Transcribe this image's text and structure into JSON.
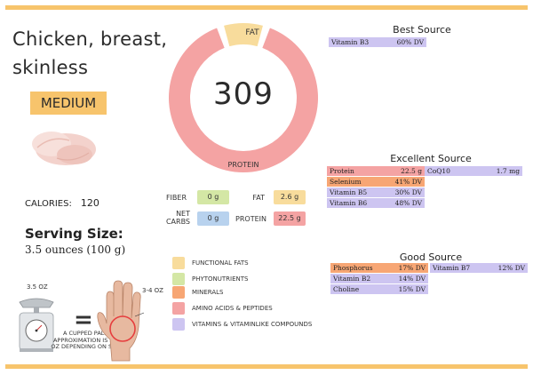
{
  "food": {
    "name": "Chicken, breast, skinless",
    "level": "MEDIUM",
    "calories_label": "CALORIES:",
    "calories_value": "120",
    "serving_title": "Serving Size:",
    "serving_value": "3.5 ounces (100 g)"
  },
  "donut": {
    "center_value": "309",
    "fat_label": "FAT",
    "protein_label": "PROTEIN",
    "fat_fraction": 0.1,
    "colors": {
      "protein": "#f4a3a3",
      "fat": "#f8dc9c"
    }
  },
  "macros": {
    "fiber_label": "FIBER",
    "fiber_value": "0 g",
    "net_carbs_label_1": "NET",
    "net_carbs_label_2": "CARBS",
    "net_carbs_value": "0 g",
    "fat_label": "FAT",
    "fat_value": "2.6 g",
    "protein_label": "PROTEIN",
    "protein_value": "22.5 g"
  },
  "legend": [
    {
      "label": "FUNCTIONAL FATS",
      "color": "#f8dc9c"
    },
    {
      "label": "PHYTONUTRIENTS",
      "color": "#d4e7a5"
    },
    {
      "label": "MINERALS",
      "color": "#f7a674"
    },
    {
      "label": "AMINO ACIDS & PEPTIDES",
      "color": "#f4a3a3"
    },
    {
      "label": "VITAMINS & VITAMINLIKE COMPOUNDS",
      "color": "#cdc5f1"
    }
  ],
  "best": {
    "title": "Best Source",
    "items": [
      {
        "name": "Vitamin B3",
        "value": "60% DV"
      }
    ]
  },
  "excellent": {
    "title": "Excellent Source",
    "items": [
      {
        "name": "Protein",
        "value": "22.5 g"
      },
      {
        "name": "CoQ10",
        "value": "1.7 mg"
      },
      {
        "name": "Selenium",
        "value": "41% DV"
      },
      {
        "name": "Vitamin B5",
        "value": "30% DV"
      },
      {
        "name": "Vitamin B6",
        "value": "48% DV"
      }
    ]
  },
  "good": {
    "title": "Good Source",
    "items": [
      {
        "name": "Phosphorus",
        "value": "17% DV"
      },
      {
        "name": "Vitamin B7",
        "value": "12% DV"
      },
      {
        "name": "Vitamin B2",
        "value": "14% DV"
      },
      {
        "name": "Choline",
        "value": "15% DV"
      }
    ]
  },
  "portion": {
    "scale_label": "3.5 OZ",
    "equals": "=",
    "palm_note": "A CUPPED PALM APPROXIMATION IS 3-4 OZ DEPENDING ON SIZE",
    "hand_label": "3-4 OZ"
  },
  "icons": {
    "chicken": "chicken-breast-icon",
    "scale": "kitchen-scale-icon",
    "hand": "cupped-palm-icon"
  }
}
